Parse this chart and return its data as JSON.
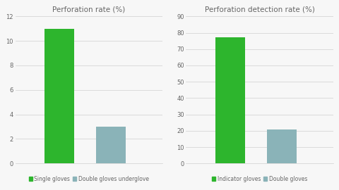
{
  "chart1": {
    "title": "Perforation rate (%)",
    "categories": [
      "Single gloves",
      "Double gloves underglove"
    ],
    "values": [
      11.0,
      3.0
    ],
    "colors": [
      "#2db52d",
      "#8ab3b8"
    ],
    "ylim": [
      0,
      12
    ],
    "yticks": [
      0,
      2,
      4,
      6,
      8,
      10,
      12
    ],
    "legend_labels": [
      "Single gloves",
      "Double gloves underglove"
    ],
    "bar_positions": [
      0.3,
      0.65
    ]
  },
  "chart2": {
    "title": "Perforation detection rate (%)",
    "categories": [
      "Indicator gloves",
      "Double gloves"
    ],
    "values": [
      77.0,
      21.0
    ],
    "colors": [
      "#2db52d",
      "#8ab3b8"
    ],
    "ylim": [
      0,
      90
    ],
    "yticks": [
      0,
      10,
      20,
      30,
      40,
      50,
      60,
      70,
      80,
      90
    ],
    "legend_labels": [
      "Indicator gloves",
      "Double gloves"
    ],
    "bar_positions": [
      0.3,
      0.65
    ]
  },
  "background_color": "#f7f7f7",
  "bar_width": 0.2,
  "xlim": [
    0.0,
    1.0
  ],
  "title_fontsize": 7.5,
  "tick_fontsize": 6.0,
  "legend_fontsize": 5.5,
  "grid_color": "#d0d0d0",
  "text_color": "#666666"
}
